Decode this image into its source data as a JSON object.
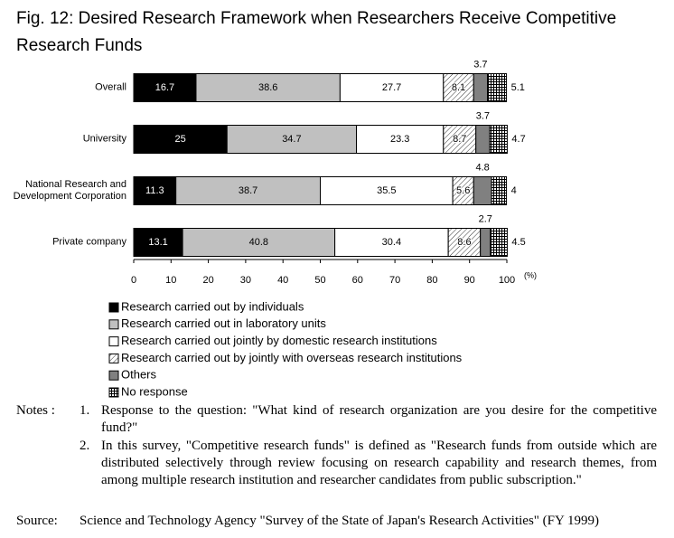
{
  "chart_data": {
    "type": "stacked-bar-horizontal",
    "title": "Fig. 12: Desired Research Framework when Researchers Receive Competitive Research Funds",
    "categories": [
      "Overall",
      "University",
      "National Research and Development Corporation",
      "Private company"
    ],
    "x_label": "(%)",
    "xlim": [
      0,
      100
    ],
    "xticks": [
      0,
      10,
      20,
      30,
      40,
      50,
      60,
      70,
      80,
      90,
      100
    ],
    "series": [
      {
        "name": "Research carried out by individuals",
        "color": "#000000",
        "label_color": "#ffffff",
        "label_position": "inside",
        "values": [
          16.7,
          25,
          11.3,
          13.1
        ]
      },
      {
        "name": "Research carried out in laboratory units",
        "color": "#c0c0c0",
        "label_color": "#000000",
        "label_position": "inside",
        "values": [
          38.6,
          34.7,
          38.7,
          40.8
        ]
      },
      {
        "name": "Research carried out jointly by domestic research institutions",
        "color": "#ffffff",
        "label_color": "#000000",
        "label_position": "inside",
        "values": [
          27.7,
          23.3,
          35.5,
          30.4
        ]
      },
      {
        "name": "Research carried out by jointly with overseas research institutions",
        "color": "#ffffff",
        "pattern": "diagonal",
        "label_color": "#000000",
        "label_position": "inside",
        "values": [
          8.1,
          8.7,
          5.6,
          8.6
        ]
      },
      {
        "name": "Others",
        "color": "#808080",
        "label_color": "#000000",
        "label_position": "above",
        "values": [
          3.7,
          3.7,
          4.8,
          2.7
        ]
      },
      {
        "name": "No response",
        "color": "#ffffff",
        "pattern": "grid",
        "label_color": "#000000",
        "label_position": "right",
        "values": [
          5.1,
          4.7,
          4,
          4.5
        ]
      }
    ]
  },
  "notes": {
    "label": "Notes :",
    "items": [
      {
        "number": "1.",
        "text": "Response to the question: \"What kind of research organization are you desire for the competitive fund?\""
      },
      {
        "number": "2.",
        "text": "In this survey, \"Competitive research funds\" is defined as \"Research funds from outside which are distributed selectively through review focusing on research capability and research themes, from among multiple research institution and researcher candidates from public subscription.\""
      }
    ]
  },
  "source": {
    "label": "Source:",
    "text": "Science and Technology Agency \"Survey of the State of Japan's Research Activities\" (FY 1999)"
  }
}
